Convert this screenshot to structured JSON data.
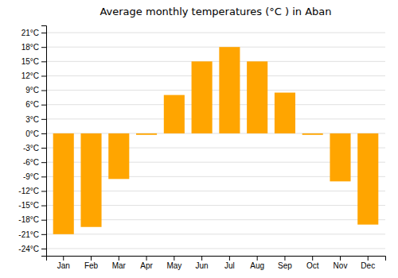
{
  "chart_data": {
    "type": "bar",
    "title": "Average monthly temperatures (°C ) in Aban",
    "categories": [
      "Jan",
      "Feb",
      "Mar",
      "Apr",
      "May",
      "Jun",
      "Jul",
      "Aug",
      "Sep",
      "Oct",
      "Nov",
      "Dec"
    ],
    "values": [
      -21,
      -19.5,
      -9.5,
      -0.3,
      8,
      15,
      18,
      15,
      8.5,
      -0.3,
      -10,
      -19
    ],
    "color": "#FFA500",
    "ylim": [
      -25.5,
      22.5
    ],
    "yticks": [
      {
        "value": -24,
        "label": "-24°C"
      },
      {
        "value": -21,
        "label": "-21°C"
      },
      {
        "value": -18,
        "label": "-18°C"
      },
      {
        "value": -15,
        "label": "-15°C"
      },
      {
        "value": -12,
        "label": "-12°C"
      },
      {
        "value": -9,
        "label": "-9°C"
      },
      {
        "value": -6,
        "label": "-6°C"
      },
      {
        "value": -3,
        "label": "-3°C"
      },
      {
        "value": 0,
        "label": "0°C"
      },
      {
        "value": 3,
        "label": "3°C"
      },
      {
        "value": 6,
        "label": "6°C"
      },
      {
        "value": 9,
        "label": "9°C"
      },
      {
        "value": 12,
        "label": "12°C"
      },
      {
        "value": 15,
        "label": "15°C"
      },
      {
        "value": 18,
        "label": "18°C"
      },
      {
        "value": 21,
        "label": "21°C"
      }
    ],
    "grid": true
  }
}
